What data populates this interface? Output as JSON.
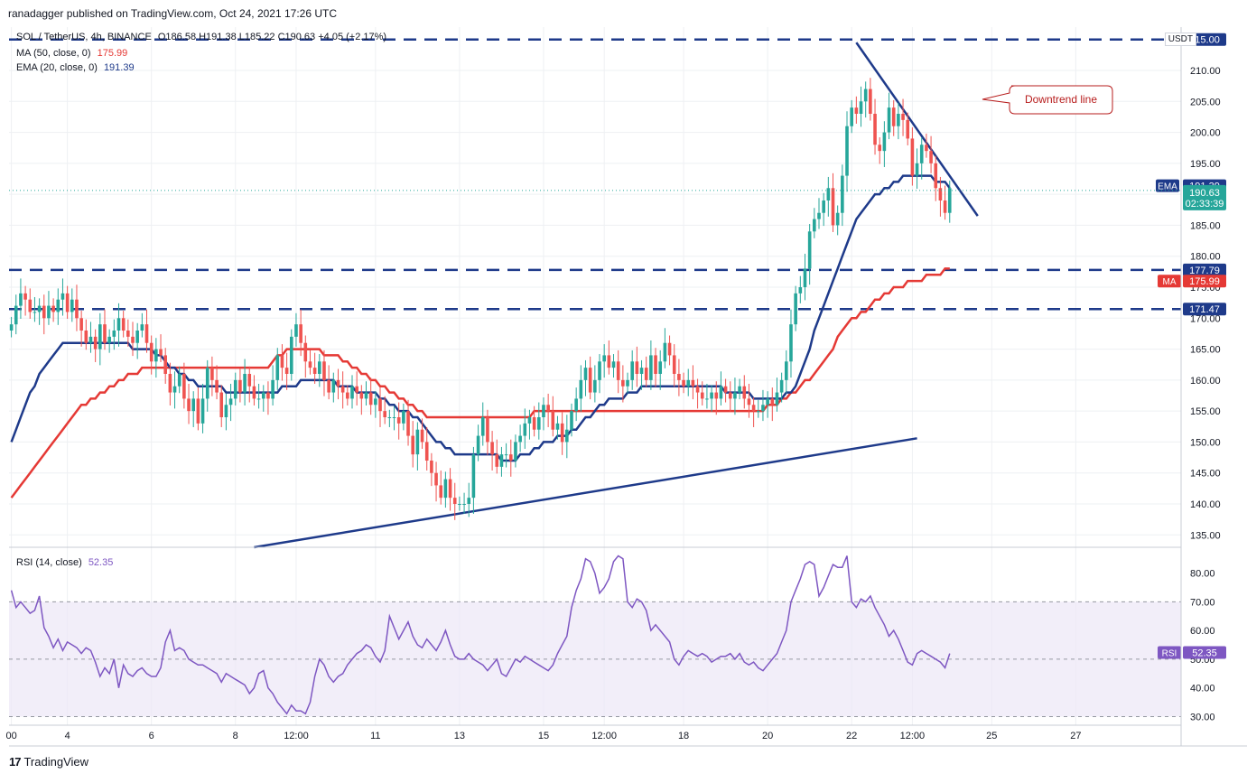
{
  "header": {
    "published": "ranadagger published on TradingView.com, Oct 24, 2021 17:26 UTC"
  },
  "legend": {
    "symbol_line": "SOL / TetherUS, 4h, BINANCE",
    "ohlc": "O186.58  H191.38  L185.22  C190.63  +4.05 (+2.17%)",
    "ma_label": "MA (50, close, 0)",
    "ma_value": "175.99",
    "ema_label": "EMA (20, close, 0)",
    "ema_value": "191.39",
    "rsi_label": "RSI (14, close)",
    "rsi_value": "52.35"
  },
  "currency": "USDT",
  "annotation": "Downtrend line",
  "price_tags": {
    "top": "215.00",
    "ema_name": "EMA",
    "ema": "191.39",
    "last": "190.63",
    "countdown": "02:33:39",
    "level_high": "177.79",
    "ma_name": "MA",
    "ma": "175.99",
    "level_low": "171.47",
    "rsi_name": "RSI",
    "rsi": "52.35"
  },
  "footer": {
    "brand": "TradingView",
    "logo_mark": "17"
  },
  "colors": {
    "up": "#26a69a",
    "down": "#ef5350",
    "ema": "#1e3a8a",
    "ma": "#e53935",
    "trendline": "#1e3a8a",
    "rsi_line": "#7e57c2",
    "rsi_band": "#ede7f6",
    "grid": "#eef0f3"
  },
  "chart_data": {
    "type": "candlestick",
    "symbol": "SOL / TetherUS",
    "timeframe": "4h",
    "exchange": "BINANCE",
    "price_axis": {
      "ticks": [
        135,
        140,
        145,
        150,
        155,
        160,
        165,
        170,
        175,
        180,
        185,
        190,
        195,
        200,
        205,
        210
      ],
      "range": [
        133,
        217
      ]
    },
    "rsi_axis": {
      "ticks": [
        30,
        40,
        50,
        60,
        70,
        80
      ],
      "range": [
        27,
        89
      ],
      "bands": [
        30,
        70
      ],
      "mid": 50
    },
    "time_axis": {
      "ticks": [
        "00",
        "4",
        "6",
        "8",
        "12:00",
        "11",
        "13",
        "15",
        "12:00",
        "18",
        "20",
        "22",
        "12:00",
        "25",
        "27"
      ],
      "tick_bars": [
        0,
        12,
        30,
        48,
        61,
        78,
        96,
        114,
        127,
        144,
        162,
        180,
        193,
        210,
        228
      ]
    },
    "horizontal_levels": [
      {
        "price": 215.0,
        "style": "dashed"
      },
      {
        "price": 177.79,
        "style": "dashed"
      },
      {
        "price": 171.47,
        "style": "dashed"
      }
    ],
    "trendlines": [
      {
        "name": "support",
        "from": [
          52,
          133.0
        ],
        "to": [
          194,
          150.6
        ]
      },
      {
        "name": "Downtrend line",
        "from": [
          181,
          214.5
        ],
        "to": [
          207,
          186.5
        ]
      }
    ],
    "candles_close": [
      169,
      172,
      174,
      173,
      171,
      171,
      172,
      170,
      172,
      171,
      173,
      174,
      171,
      173,
      170,
      168,
      166,
      167,
      165,
      169,
      166,
      167,
      168,
      170,
      168,
      167,
      166,
      168,
      169,
      166,
      163,
      165,
      164,
      161,
      158,
      159,
      161,
      157,
      155,
      157,
      153,
      157,
      162,
      160,
      158,
      154,
      156,
      157,
      160,
      158,
      161,
      159,
      157,
      157,
      158,
      157,
      160,
      164,
      162,
      161,
      167,
      169,
      166,
      163,
      162,
      161,
      163,
      160,
      158,
      160,
      159,
      158,
      157,
      159,
      158,
      157,
      158,
      156,
      157,
      155,
      154,
      154,
      154,
      153,
      155,
      151,
      148,
      152,
      150,
      147,
      145,
      143,
      141,
      144,
      141,
      140,
      140,
      140,
      141,
      148,
      151,
      154,
      150,
      148,
      146,
      148,
      148,
      147,
      150,
      151,
      153,
      154,
      152,
      154,
      156,
      155,
      152,
      153,
      150,
      152,
      155,
      157,
      160,
      162,
      158,
      160,
      163,
      164,
      162,
      163,
      160,
      159,
      160,
      163,
      161,
      162,
      160,
      164,
      161,
      163,
      166,
      164,
      161,
      160,
      159,
      160,
      159,
      158,
      157,
      157,
      158,
      157,
      159,
      158,
      157,
      158,
      159,
      157,
      156,
      155,
      155,
      156,
      157,
      156,
      158,
      160,
      163,
      169,
      174,
      175,
      178,
      184,
      186,
      187,
      189,
      191,
      185,
      187,
      193,
      201,
      204,
      203,
      205,
      207,
      203,
      198,
      197,
      200,
      204,
      201,
      203,
      202,
      199,
      193,
      195,
      198,
      197,
      195,
      191,
      189,
      187,
      191
    ],
    "ema20": [
      150,
      152,
      154,
      156,
      158,
      159,
      161,
      162,
      163,
      164,
      165,
      166,
      166,
      166,
      166,
      166,
      166,
      166,
      166,
      166,
      166,
      166,
      166,
      166,
      166,
      166,
      165,
      165,
      165,
      165,
      165,
      164,
      164,
      163,
      162,
      162,
      161,
      161,
      160,
      160,
      159,
      159,
      159,
      159,
      159,
      159,
      158,
      158,
      158,
      158,
      158,
      158,
      158,
      158,
      158,
      158,
      158,
      158,
      159,
      159,
      159,
      159,
      160,
      160,
      160,
      160,
      160,
      160,
      160,
      160,
      159,
      159,
      159,
      159,
      158,
      158,
      158,
      158,
      158,
      157,
      157,
      156,
      156,
      155,
      155,
      155,
      154,
      154,
      153,
      152,
      151,
      150,
      150,
      149,
      149,
      148,
      148,
      148,
      148,
      148,
      148,
      148,
      148,
      148,
      148,
      147,
      147,
      147,
      147,
      148,
      148,
      148,
      149,
      149,
      150,
      150,
      150,
      151,
      151,
      151,
      152,
      152,
      153,
      154,
      154,
      155,
      156,
      156,
      157,
      157,
      157,
      157,
      158,
      158,
      158,
      159,
      159,
      159,
      159,
      159,
      159,
      159,
      159,
      159,
      159,
      159,
      159,
      159,
      159,
      159,
      159,
      159,
      159,
      158,
      158,
      158,
      158,
      158,
      158,
      157,
      157,
      157,
      157,
      157,
      157,
      157,
      158,
      158,
      159,
      161,
      163,
      165,
      168,
      170,
      172,
      174,
      176,
      178,
      180,
      182,
      184,
      186,
      187,
      188,
      189,
      190,
      190,
      191,
      191,
      192,
      192,
      193,
      193,
      193,
      193,
      193,
      193,
      193,
      192,
      192,
      192,
      191
    ],
    "ma50": [
      141,
      142,
      143,
      144,
      145,
      146,
      147,
      148,
      149,
      150,
      151,
      152,
      153,
      154,
      155,
      156,
      156,
      157,
      157,
      158,
      158,
      159,
      159,
      160,
      160,
      161,
      161,
      161,
      162,
      162,
      162,
      162,
      162,
      162,
      162,
      162,
      162,
      162,
      162,
      162,
      162,
      162,
      162,
      162,
      162,
      162,
      162,
      162,
      162,
      162,
      162,
      162,
      162,
      162,
      162,
      162,
      163,
      164,
      164,
      165,
      165,
      165,
      165,
      165,
      165,
      165,
      165,
      164,
      164,
      164,
      164,
      163,
      163,
      162,
      162,
      161,
      161,
      160,
      160,
      159,
      159,
      158,
      158,
      157,
      157,
      156,
      156,
      155,
      155,
      154,
      154,
      154,
      154,
      154,
      154,
      154,
      154,
      154,
      154,
      154,
      154,
      154,
      154,
      154,
      154,
      154,
      154,
      154,
      154,
      154,
      154,
      154,
      155,
      155,
      155,
      155,
      155,
      155,
      155,
      155,
      155,
      155,
      155,
      155,
      155,
      155,
      155,
      155,
      155,
      155,
      155,
      155,
      155,
      155,
      155,
      155,
      155,
      155,
      155,
      155,
      155,
      155,
      155,
      155,
      155,
      155,
      155,
      155,
      155,
      155,
      155,
      155,
      155,
      155,
      155,
      155,
      155,
      155,
      155,
      155,
      155,
      155,
      156,
      156,
      156,
      157,
      157,
      158,
      158,
      159,
      160,
      160,
      161,
      162,
      163,
      164,
      165,
      167,
      168,
      169,
      170,
      170,
      171,
      171,
      172,
      173,
      173,
      174,
      174,
      175,
      175,
      175,
      176,
      176,
      176,
      176,
      177,
      177,
      177,
      177,
      178,
      178
    ],
    "rsi": [
      74,
      68,
      70,
      68,
      66,
      67,
      72,
      61,
      58,
      54,
      57,
      53,
      56,
      55,
      54,
      52,
      54,
      53,
      49,
      44,
      47,
      45,
      50,
      40,
      48,
      45,
      44,
      46,
      47,
      45,
      44,
      44,
      47,
      56,
      60,
      53,
      54,
      53,
      50,
      49,
      48,
      48,
      47,
      46,
      45,
      42,
      45,
      44,
      43,
      42,
      41,
      38,
      40,
      45,
      46,
      40,
      38,
      35,
      33,
      31,
      34,
      32,
      32,
      31,
      35,
      44,
      50,
      48,
      44,
      42,
      44,
      45,
      48,
      50,
      52,
      53,
      55,
      54,
      51,
      49,
      53,
      65,
      61,
      57,
      60,
      63,
      58,
      55,
      54,
      57,
      55,
      53,
      56,
      60,
      55,
      51,
      50,
      50,
      52,
      50,
      49,
      48,
      46,
      48,
      50,
      45,
      44,
      47,
      50,
      49,
      51,
      50,
      49,
      48,
      47,
      46,
      48,
      52,
      55,
      58,
      68,
      74,
      78,
      85,
      84,
      80,
      73,
      75,
      78,
      84,
      86,
      85,
      70,
      68,
      71,
      70,
      67,
      60,
      62,
      60,
      58,
      56,
      50,
      48,
      51,
      53,
      52,
      51,
      52,
      51,
      49,
      50,
      51,
      51,
      52,
      50,
      52,
      49,
      48,
      49,
      47,
      46,
      48,
      50,
      52,
      56,
      60,
      70,
      74,
      78,
      83,
      84,
      83,
      72,
      75,
      79,
      83,
      82,
      82,
      86,
      70,
      68,
      71,
      70,
      72,
      68,
      65,
      62,
      58,
      60,
      57,
      53,
      49,
      48,
      52,
      53,
      52,
      51,
      50,
      49,
      47,
      52
    ],
    "price_level_labels": [
      "215.00",
      "177.79",
      "171.47"
    ]
  }
}
